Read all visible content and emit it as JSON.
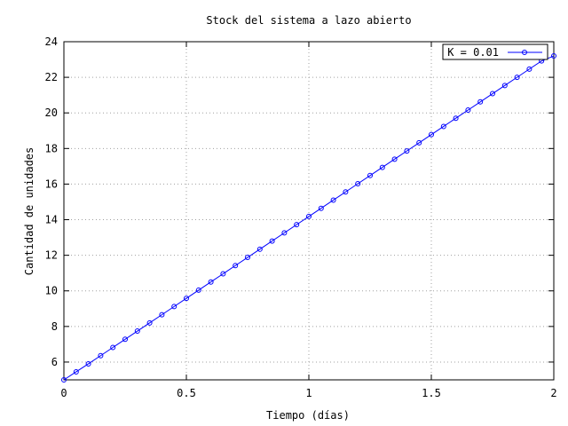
{
  "chart_data": {
    "type": "line",
    "title": "Stock del sistema a lazo abierto",
    "xlabel": "Tiempo (días)",
    "ylabel": "Cantidad de unidades",
    "xlim": [
      0,
      2
    ],
    "ylim": [
      5,
      24
    ],
    "xticks": [
      0,
      0.5,
      1,
      1.5,
      2
    ],
    "xtick_labels": [
      "0",
      "0.5",
      "1",
      "1.5",
      "2"
    ],
    "yticks": [
      6,
      8,
      10,
      12,
      14,
      16,
      18,
      20,
      22,
      24
    ],
    "ytick_labels": [
      "6",
      "8",
      "10",
      "12",
      "14",
      "16",
      "18",
      "20",
      "22",
      "24"
    ],
    "grid": true,
    "legend_position": "top-right",
    "series": [
      {
        "name": "K = 0.01",
        "color": "#0000ff",
        "marker": "circle",
        "x": [
          0,
          0.05,
          0.1,
          0.15,
          0.2,
          0.25,
          0.3,
          0.35,
          0.4,
          0.45,
          0.5,
          0.55,
          0.6,
          0.65,
          0.7,
          0.75,
          0.8,
          0.85,
          0.9,
          0.95,
          1,
          1.05,
          1.1,
          1.15,
          1.2,
          1.25,
          1.3,
          1.35,
          1.4,
          1.45,
          1.5,
          1.55,
          1.6,
          1.65,
          1.7,
          1.75,
          1.8,
          1.85,
          1.9,
          1.95,
          2
        ],
        "y": [
          5.0,
          5.45,
          5.9,
          6.36,
          6.82,
          7.28,
          7.74,
          8.2,
          8.66,
          9.12,
          9.58,
          10.04,
          10.5,
          10.96,
          11.42,
          11.88,
          12.34,
          12.8,
          13.26,
          13.72,
          14.18,
          14.64,
          15.1,
          15.56,
          16.02,
          16.48,
          16.94,
          17.4,
          17.86,
          18.32,
          18.78,
          19.24,
          19.7,
          20.16,
          20.62,
          21.08,
          21.54,
          22.0,
          22.46,
          22.92,
          23.2
        ]
      }
    ]
  }
}
